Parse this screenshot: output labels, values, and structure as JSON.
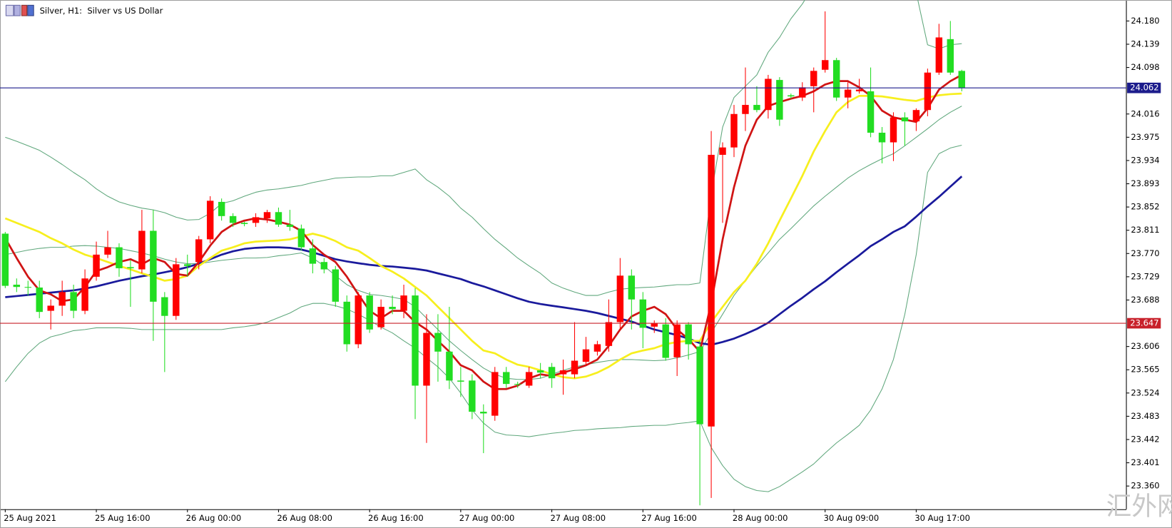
{
  "chart_data": {
    "type": "candlestick",
    "title": "Silver, H1:  Silver vs US Dollar",
    "watermark": "汇外网",
    "categories": [
      "25 Aug 2021",
      null,
      null,
      null,
      null,
      null,
      null,
      null,
      "25 Aug 16:00",
      null,
      null,
      null,
      null,
      null,
      null,
      null,
      "26 Aug 00:00",
      null,
      null,
      null,
      null,
      null,
      null,
      null,
      "26 Aug 08:00",
      null,
      null,
      null,
      null,
      null,
      null,
      null,
      "26 Aug 16:00",
      null,
      null,
      null,
      null,
      null,
      null,
      null,
      "27 Aug 00:00",
      null,
      null,
      null,
      null,
      null,
      null,
      null,
      "27 Aug 08:00",
      null,
      null,
      null,
      null,
      null,
      null,
      null,
      "27 Aug 16:00",
      null,
      null,
      null,
      null,
      null,
      null,
      null,
      "28 Aug 00:00",
      null,
      null,
      null,
      null,
      null,
      null,
      null,
      "30 Aug 09:00",
      null,
      null,
      null,
      null,
      null,
      null,
      null,
      "30 Aug 17:00",
      null,
      null,
      null,
      null
    ],
    "open": [
      23.805,
      23.715,
      23.711,
      23.71,
      23.669,
      23.678,
      23.702,
      23.669,
      23.729,
      23.768,
      23.781,
      23.746,
      23.742,
      23.81,
      23.693,
      23.66,
      23.751,
      23.755,
      23.795,
      23.861,
      23.836,
      23.824,
      23.824,
      23.832,
      23.843,
      23.821,
      23.814,
      23.779,
      23.755,
      23.742,
      23.685,
      23.61,
      23.696,
      23.64,
      23.676,
      23.669,
      23.696,
      23.537,
      23.63,
      23.597,
      23.546,
      23.546,
      23.491,
      23.484,
      23.561,
      23.54,
      23.537,
      23.564,
      23.57,
      23.557,
      23.557,
      23.579,
      23.597,
      23.607,
      23.649,
      23.731,
      23.689,
      23.641,
      23.645,
      23.587,
      23.645,
      23.606,
      23.465,
      23.944,
      23.957,
      24.016,
      24.032,
      24.023,
      24.076,
      24.049,
      24.045,
      24.065,
      24.094,
      24.111,
      24.045,
      24.056,
      24.056,
      23.983,
      23.966,
      24.01,
      24.003,
      24.023,
      24.089,
      24.148,
      24.092
    ],
    "high": [
      23.808,
      23.726,
      23.722,
      23.722,
      23.689,
      23.722,
      23.715,
      23.742,
      23.791,
      23.81,
      23.788,
      23.758,
      23.847,
      23.847,
      23.702,
      23.762,
      23.768,
      23.801,
      23.871,
      23.867,
      23.841,
      23.826,
      23.841,
      23.847,
      23.851,
      23.847,
      23.821,
      23.795,
      23.762,
      23.748,
      23.696,
      23.702,
      23.702,
      23.689,
      23.696,
      23.715,
      23.709,
      23.663,
      23.663,
      23.676,
      23.57,
      23.557,
      23.504,
      23.57,
      23.57,
      23.544,
      23.57,
      23.577,
      23.577,
      23.583,
      23.649,
      23.623,
      23.616,
      23.689,
      23.762,
      23.742,
      23.702,
      23.652,
      23.656,
      23.652,
      23.649,
      23.616,
      23.986,
      23.966,
      24.032,
      24.098,
      24.065,
      24.085,
      24.081,
      24.052,
      24.072,
      24.098,
      24.197,
      24.115,
      24.072,
      24.078,
      24.098,
      23.993,
      24.019,
      24.019,
      24.026,
      24.096,
      24.175,
      24.18,
      24.094
    ],
    "low": [
      23.709,
      23.702,
      23.696,
      23.656,
      23.636,
      23.66,
      23.656,
      23.663,
      23.722,
      23.762,
      23.729,
      23.676,
      23.735,
      23.616,
      23.561,
      23.653,
      23.729,
      23.742,
      23.788,
      23.828,
      23.817,
      23.818,
      23.817,
      23.824,
      23.817,
      23.81,
      23.775,
      23.735,
      23.735,
      23.676,
      23.597,
      23.603,
      23.63,
      23.636,
      23.663,
      23.656,
      23.478,
      23.436,
      23.544,
      23.531,
      23.517,
      23.478,
      23.418,
      23.475,
      23.533,
      23.533,
      23.533,
      23.55,
      23.533,
      23.521,
      23.55,
      23.573,
      23.59,
      23.597,
      23.636,
      23.636,
      23.603,
      23.63,
      23.581,
      23.554,
      23.583,
      23.326,
      23.339,
      23.824,
      23.94,
      23.986,
      24.019,
      24.008,
      23.995,
      24.043,
      24.039,
      24.019,
      24.089,
      24.039,
      24.026,
      24.052,
      23.975,
      23.929,
      23.933,
      23.96,
      23.986,
      24.012,
      24.085,
      24.085,
      24.056
    ],
    "close": [
      23.713,
      23.711,
      23.71,
      23.667,
      23.678,
      23.702,
      23.669,
      23.726,
      23.768,
      23.781,
      23.744,
      23.744,
      23.81,
      23.685,
      23.66,
      23.751,
      23.748,
      23.795,
      23.863,
      23.836,
      23.824,
      23.822,
      23.834,
      23.843,
      23.821,
      23.817,
      23.781,
      23.752,
      23.742,
      23.685,
      23.61,
      23.696,
      23.636,
      23.676,
      23.672,
      23.696,
      23.537,
      23.63,
      23.597,
      23.546,
      23.544,
      23.491,
      23.488,
      23.561,
      23.54,
      23.539,
      23.561,
      23.56,
      23.55,
      23.564,
      23.581,
      23.601,
      23.61,
      23.649,
      23.731,
      23.689,
      23.639,
      23.647,
      23.586,
      23.645,
      23.61,
      23.469,
      23.944,
      23.957,
      24.016,
      24.032,
      24.023,
      24.078,
      24.006,
      24.047,
      24.063,
      24.092,
      24.111,
      24.045,
      24.059,
      24.059,
      23.983,
      23.966,
      24.01,
      24.003,
      24.023,
      24.089,
      24.151,
      24.089,
      24.062
    ],
    "up_color": "#ff0000",
    "down_color": "#22dd22",
    "indicators": [
      {
        "color": "#5fa77c",
        "values": [
          23.975,
          23.968,
          23.96,
          23.952,
          23.94,
          23.927,
          23.913,
          23.9,
          23.884,
          23.871,
          23.861,
          23.855,
          23.85,
          23.847,
          23.842,
          23.834,
          23.829,
          23.83,
          23.841,
          23.858,
          23.863,
          23.871,
          23.878,
          23.882,
          23.884,
          23.887,
          23.89,
          23.895,
          23.899,
          23.903,
          23.904,
          23.905,
          23.905,
          23.907,
          23.907,
          23.913,
          23.919,
          23.9,
          23.887,
          23.871,
          23.85,
          23.834,
          23.814,
          23.795,
          23.779,
          23.762,
          23.748,
          23.735,
          23.718,
          23.709,
          23.702,
          23.696,
          23.696,
          23.702,
          23.707,
          23.709,
          23.71,
          23.711,
          23.713,
          23.715,
          23.715,
          23.718,
          23.874,
          23.993,
          24.045,
          24.065,
          24.085,
          24.125,
          24.151,
          24.184,
          24.21,
          24.243,
          24.276,
          24.303,
          24.316,
          24.323,
          24.316,
          24.303,
          24.29,
          24.27,
          24.23,
          24.138,
          24.131,
          24.138,
          24.14
        ]
      },
      {
        "color": "#5fa77c",
        "values": [
          23.768,
          23.772,
          23.776,
          23.779,
          23.781,
          23.781,
          23.783,
          23.784,
          23.783,
          23.781,
          23.779,
          23.775,
          23.771,
          23.766,
          23.76,
          23.755,
          23.752,
          23.752,
          23.755,
          23.758,
          23.76,
          23.762,
          23.762,
          23.763,
          23.766,
          23.768,
          23.771,
          23.762,
          23.748,
          23.731,
          23.715,
          23.705,
          23.698,
          23.696,
          23.693,
          23.689,
          23.676,
          23.656,
          23.636,
          23.616,
          23.599,
          23.583,
          23.568,
          23.557,
          23.55,
          23.548,
          23.548,
          23.55,
          23.557,
          23.564,
          23.57,
          23.574,
          23.578,
          23.581,
          23.583,
          23.583,
          23.582,
          23.581,
          23.582,
          23.586,
          23.591,
          23.597,
          23.63,
          23.663,
          23.696,
          23.722,
          23.748,
          23.771,
          23.795,
          23.814,
          23.834,
          23.854,
          23.871,
          23.887,
          23.903,
          23.916,
          23.927,
          23.937,
          23.946,
          23.96,
          23.975,
          23.99,
          24.006,
          24.019,
          24.03
        ]
      },
      {
        "color": "#5fa77c",
        "values": [
          23.544,
          23.57,
          23.594,
          23.612,
          23.623,
          23.628,
          23.634,
          23.636,
          23.639,
          23.639,
          23.639,
          23.638,
          23.636,
          23.636,
          23.636,
          23.636,
          23.636,
          23.636,
          23.636,
          23.636,
          23.639,
          23.641,
          23.644,
          23.649,
          23.657,
          23.665,
          23.676,
          23.682,
          23.682,
          23.678,
          23.672,
          23.663,
          23.652,
          23.64,
          23.63,
          23.616,
          23.603,
          23.586,
          23.57,
          23.55,
          23.524,
          23.494,
          23.471,
          23.455,
          23.45,
          23.449,
          23.447,
          23.45,
          23.453,
          23.455,
          23.458,
          23.459,
          23.461,
          23.462,
          23.463,
          23.465,
          23.466,
          23.467,
          23.467,
          23.47,
          23.472,
          23.475,
          23.428,
          23.396,
          23.372,
          23.359,
          23.352,
          23.35,
          23.359,
          23.372,
          23.385,
          23.399,
          23.418,
          23.436,
          23.451,
          23.467,
          23.494,
          23.531,
          23.583,
          23.663,
          23.768,
          23.913,
          23.946,
          23.956,
          23.961
        ]
      },
      {
        "color": "#1a1a9c",
        "values": [
          23.693,
          23.695,
          23.697,
          23.699,
          23.701,
          23.703,
          23.705,
          23.708,
          23.712,
          23.717,
          23.722,
          23.726,
          23.73,
          23.733,
          23.737,
          23.741,
          23.746,
          23.752,
          23.76,
          23.768,
          23.774,
          23.778,
          23.78,
          23.781,
          23.781,
          23.78,
          23.777,
          23.772,
          23.766,
          23.76,
          23.756,
          23.753,
          23.75,
          23.748,
          23.747,
          23.745,
          23.743,
          23.74,
          23.735,
          23.73,
          23.725,
          23.718,
          23.712,
          23.705,
          23.698,
          23.691,
          23.685,
          23.681,
          23.678,
          23.675,
          23.672,
          23.669,
          23.665,
          23.66,
          23.655,
          23.65,
          23.643,
          23.636,
          23.631,
          23.626,
          23.62,
          23.612,
          23.609,
          23.614,
          23.62,
          23.628,
          23.637,
          23.648,
          23.663,
          23.678,
          23.692,
          23.707,
          23.721,
          23.737,
          23.752,
          23.767,
          23.783,
          23.795,
          23.808,
          23.818,
          23.835,
          23.853,
          23.87,
          23.888,
          23.906
        ]
      },
      {
        "color": "#f7ef1e",
        "values": [
          23.832,
          23.824,
          23.816,
          23.808,
          23.797,
          23.788,
          23.777,
          23.768,
          23.762,
          23.755,
          23.748,
          23.742,
          23.735,
          23.729,
          23.722,
          23.725,
          23.731,
          23.748,
          23.762,
          23.775,
          23.781,
          23.788,
          23.791,
          23.792,
          23.793,
          23.795,
          23.8,
          23.805,
          23.8,
          23.792,
          23.781,
          23.775,
          23.762,
          23.748,
          23.738,
          23.726,
          23.711,
          23.696,
          23.676,
          23.656,
          23.636,
          23.616,
          23.599,
          23.594,
          23.583,
          23.574,
          23.57,
          23.564,
          23.557,
          23.552,
          23.55,
          23.553,
          23.56,
          23.57,
          23.583,
          23.594,
          23.599,
          23.603,
          23.61,
          23.614,
          23.616,
          23.616,
          23.649,
          23.676,
          23.702,
          23.722,
          23.752,
          23.788,
          23.828,
          23.867,
          23.907,
          23.95,
          23.986,
          24.019,
          24.037,
          24.048,
          24.048,
          24.047,
          24.044,
          24.041,
          24.039,
          24.045,
          24.049,
          24.051,
          24.052
        ]
      },
      {
        "color": "#d01414",
        "values": [
          23.797,
          23.762,
          23.729,
          23.705,
          23.698,
          23.686,
          23.689,
          23.711,
          23.739,
          23.746,
          23.755,
          23.76,
          23.751,
          23.762,
          23.755,
          23.734,
          23.731,
          23.755,
          23.784,
          23.808,
          23.821,
          23.828,
          23.832,
          23.83,
          23.826,
          23.821,
          23.81,
          23.785,
          23.768,
          23.755,
          23.729,
          23.698,
          23.669,
          23.656,
          23.669,
          23.669,
          23.649,
          23.636,
          23.616,
          23.597,
          23.573,
          23.564,
          23.544,
          23.531,
          23.531,
          23.537,
          23.55,
          23.557,
          23.554,
          23.56,
          23.566,
          23.573,
          23.583,
          23.607,
          23.636,
          23.659,
          23.669,
          23.676,
          23.663,
          23.636,
          23.619,
          23.597,
          23.682,
          23.795,
          23.887,
          23.96,
          24.006,
          24.03,
          24.037,
          24.043,
          24.048,
          24.056,
          24.068,
          24.074,
          24.074,
          24.063,
          24.048,
          24.022,
          24.01,
          24.006,
          24.002,
          24.026,
          24.059,
          24.074,
          24.085
        ]
      }
    ],
    "price_lines": [
      {
        "value": 24.062,
        "color": "#1c1c8c"
      },
      {
        "value": 23.647,
        "color": "#c8202a"
      }
    ],
    "ylim": [
      23.319,
      24.217
    ],
    "yticks": [
      {
        "value": 24.18,
        "label": "24.180"
      },
      24.139,
      24.098,
      24.016,
      23.975,
      23.934,
      23.893,
      23.852,
      23.811,
      {
        "value": 23.77,
        "label": "23.770"
      },
      23.729,
      23.688,
      23.606,
      23.565,
      23.524,
      23.483,
      23.442,
      23.401,
      {
        "value": 23.36,
        "label": "23.360"
      }
    ]
  }
}
